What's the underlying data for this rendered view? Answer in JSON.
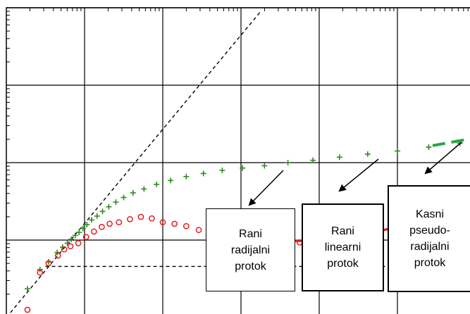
{
  "chart_data": {
    "type": "scatter",
    "title": "",
    "xlabel": "",
    "ylabel": "",
    "x_scale": "log",
    "y_scale": "log",
    "xlim_decades": [
      0,
      6
    ],
    "ylim_decades": [
      0,
      4
    ],
    "grid": true,
    "colors": {
      "pressure": "#2e8b1f",
      "derivative": "#e21d1d",
      "derivative_fit": "#e21d1d",
      "pressure_fit": "#23a745"
    },
    "series": [
      {
        "marker": "plus",
        "color": "#2e8b1f",
        "x": [
          0.27,
          0.43,
          0.54,
          0.65,
          0.72,
          0.78,
          0.83,
          0.88,
          0.93,
          0.98,
          1.03,
          1.09,
          1.16,
          1.23,
          1.31,
          1.4,
          1.5,
          1.62,
          1.76,
          1.92,
          2.1,
          2.3,
          2.52,
          2.76,
          3.02,
          3.3,
          3.6,
          3.92,
          4.26,
          4.62,
          5.0,
          5.4,
          5.8
        ],
        "y": [
          0.37,
          0.62,
          0.72,
          0.84,
          0.91,
          0.96,
          1.01,
          1.06,
          1.1,
          1.15,
          1.2,
          1.26,
          1.31,
          1.37,
          1.43,
          1.49,
          1.55,
          1.61,
          1.66,
          1.72,
          1.77,
          1.82,
          1.86,
          1.9,
          1.93,
          1.96,
          2.0,
          2.03,
          2.07,
          2.11,
          2.15,
          2.2,
          2.25
        ]
      },
      {
        "marker": "circle",
        "color": "#e21d1d",
        "x": [
          0.27,
          0.43,
          0.54,
          0.66,
          0.74,
          0.82,
          0.92,
          1.02,
          1.12,
          1.22,
          1.32,
          1.44,
          1.58,
          1.72,
          1.86,
          2.0,
          2.15,
          2.3,
          2.46,
          2.62,
          2.78,
          2.94,
          3.1,
          3.3,
          3.52,
          3.75,
          4.0,
          4.25,
          4.5,
          4.78,
          5.05,
          5.28,
          5.45
        ],
        "y": [
          0.1,
          0.58,
          0.7,
          0.8,
          0.88,
          0.92,
          0.96,
          1.04,
          1.11,
          1.17,
          1.21,
          1.23,
          1.27,
          1.3,
          1.28,
          1.23,
          1.21,
          1.18,
          1.13,
          1.08,
          1.05,
          1.02,
          1.0,
          0.99,
          0.98,
          0.97,
          0.98,
          1.0,
          1.03,
          1.08,
          1.14,
          1.21,
          1.27
        ]
      }
    ],
    "fit_lines": [
      {
        "color": "#e21d1d",
        "style": "solid",
        "x": [
          3.0,
          3.65,
          4.25
        ],
        "y": [
          0.99,
          0.99,
          0.99
        ]
      },
      {
        "color": "#e21d1d",
        "style": "solid",
        "x": [
          4.2,
          5.45
        ],
        "y": [
          0.99,
          1.27
        ]
      },
      {
        "color": "#e21d1d",
        "style": "dashed",
        "x": [
          5.45,
          6.0
        ],
        "y": [
          1.27,
          1.27
        ]
      },
      {
        "color": "#23a745",
        "style": "dashed",
        "x": [
          5.45,
          6.0
        ],
        "y": [
          2.22,
          2.32
        ]
      }
    ],
    "reference_lines": [
      {
        "color": "#000000",
        "style": "dashed",
        "x": [
          0,
          3.25
        ],
        "y": [
          0.0,
          3.95
        ]
      },
      {
        "color": "#000000",
        "style": "dashed",
        "x": [
          0.5,
          5.0
        ],
        "y": [
          0.66,
          0.66
        ]
      }
    ]
  },
  "callouts": [
    {
      "lines": [
        "Rani",
        "radijalni",
        "protok"
      ]
    },
    {
      "lines": [
        "Rani",
        "linearni",
        "protok"
      ]
    },
    {
      "lines": [
        "Kasni",
        "pseudo-",
        "radijalni",
        "protok"
      ]
    }
  ]
}
